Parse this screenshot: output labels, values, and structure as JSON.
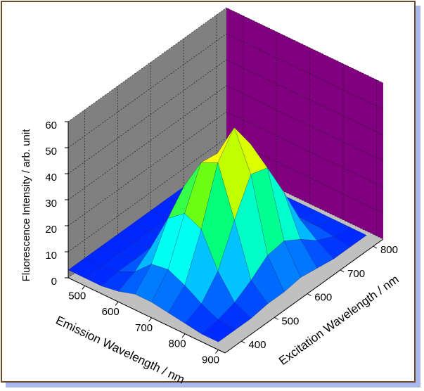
{
  "chart_data": {
    "type": "surface3d",
    "xlabel": "Emission Wavelength / nm",
    "ylabel": "Excitation Wavelength / nm",
    "zlabel": "Fluorescence Intensity / arb. unit",
    "x": [
      450,
      500,
      550,
      600,
      650,
      700,
      750,
      800,
      850,
      900
    ],
    "y": [
      350,
      400,
      450,
      500,
      550,
      600,
      650,
      700,
      750,
      800
    ],
    "z": [
      [
        3,
        3,
        3,
        3,
        3,
        3,
        3,
        3,
        3,
        3
      ],
      [
        3,
        3,
        3,
        3,
        3,
        3,
        3,
        3,
        3,
        3
      ],
      [
        3,
        4,
        4,
        4,
        4,
        4,
        3,
        3,
        3,
        3
      ],
      [
        4,
        7,
        12,
        14,
        12,
        7,
        4,
        3,
        3,
        3
      ],
      [
        6,
        13,
        26,
        34,
        29,
        16,
        7,
        4,
        3,
        3
      ],
      [
        6,
        14,
        31,
        46,
        45,
        29,
        13,
        6,
        4,
        3
      ],
      [
        5,
        11,
        28,
        49,
        58,
        47,
        26,
        11,
        5,
        3
      ],
      [
        4,
        7,
        15,
        30,
        43,
        41,
        27,
        12,
        5,
        3
      ],
      [
        3,
        4,
        6,
        10,
        15,
        16,
        12,
        7,
        4,
        3
      ],
      [
        3,
        3,
        3,
        4,
        4,
        5,
        4,
        3,
        3,
        3
      ]
    ],
    "xlim": [
      450,
      920
    ],
    "xticks": [
      500,
      600,
      700,
      800,
      900
    ],
    "ylim": [
      350,
      830
    ],
    "yticks": [
      400,
      500,
      600,
      700,
      800
    ],
    "zlim": [
      0,
      60
    ],
    "zticks": [
      0,
      10,
      20,
      30,
      40,
      50,
      60
    ],
    "grid": true,
    "left_wall_color": "#808080",
    "right_wall_color": "#800080",
    "floor_color": "#c0c0c0",
    "colormap": [
      "#0000ff",
      "#0080ff",
      "#00ffff",
      "#00ff80",
      "#80ff00",
      "#ffff00",
      "#ff8000"
    ]
  }
}
